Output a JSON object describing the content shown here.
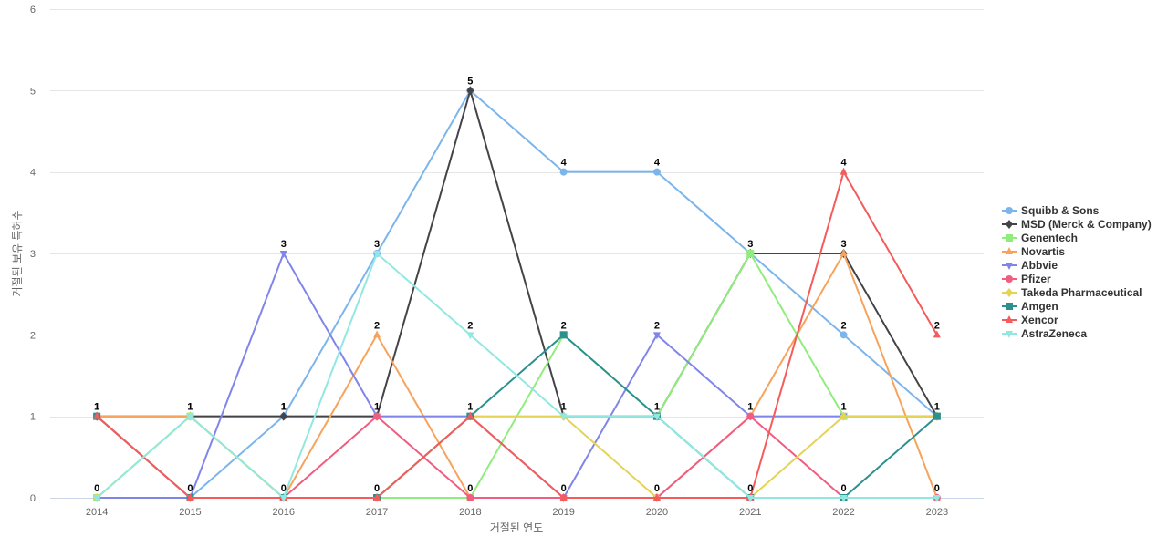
{
  "chart_data": {
    "type": "line",
    "title": "",
    "xlabel": "거절된 연도",
    "ylabel": "거절된 보유 특허수",
    "categories": [
      "2014",
      "2015",
      "2016",
      "2017",
      "2018",
      "2019",
      "2020",
      "2021",
      "2022",
      "2023"
    ],
    "ylim": [
      0,
      6
    ],
    "yticks": [
      "0",
      "1",
      "2",
      "3",
      "4",
      "5",
      "6"
    ],
    "grid": true,
    "legend_position": "right",
    "series": [
      {
        "name": "Squibb & Sons",
        "color": "#7cb5ec",
        "marker": "circle",
        "values": [
          0,
          0,
          1,
          3,
          5,
          4,
          4,
          3,
          2,
          1
        ]
      },
      {
        "name": "MSD (Merck & Company)",
        "color": "#434348",
        "marker": "diamond",
        "values": [
          1,
          1,
          1,
          1,
          5,
          1,
          1,
          3,
          3,
          1
        ]
      },
      {
        "name": "Genentech",
        "color": "#90ed7d",
        "marker": "square",
        "values": [
          0,
          1,
          0,
          0,
          0,
          2,
          1,
          3,
          1,
          1
        ]
      },
      {
        "name": "Novartis",
        "color": "#f7a35c",
        "marker": "triangle",
        "values": [
          1,
          1,
          0,
          2,
          0,
          0,
          0,
          1,
          3,
          0
        ]
      },
      {
        "name": "Abbvie",
        "color": "#8085e9",
        "marker": "triangle-down",
        "values": [
          0,
          0,
          3,
          1,
          1,
          0,
          2,
          1,
          1,
          1
        ]
      },
      {
        "name": "Pfizer",
        "color": "#f15c80",
        "marker": "circle",
        "values": [
          1,
          0,
          0,
          1,
          0,
          0,
          0,
          1,
          0,
          0
        ]
      },
      {
        "name": "Takeda Pharmaceutical",
        "color": "#e4d354",
        "marker": "diamond",
        "values": [
          0,
          1,
          0,
          0,
          1,
          1,
          0,
          0,
          1,
          1
        ]
      },
      {
        "name": "Amgen",
        "color": "#2b908f",
        "marker": "square",
        "values": [
          1,
          0,
          0,
          0,
          1,
          2,
          1,
          0,
          0,
          1
        ]
      },
      {
        "name": "Xencor",
        "color": "#f45b5b",
        "marker": "triangle",
        "values": [
          1,
          0,
          0,
          0,
          1,
          0,
          0,
          0,
          4,
          2
        ]
      },
      {
        "name": "AstraZeneca",
        "color": "#91e8e1",
        "marker": "triangle-down",
        "values": [
          0,
          1,
          0,
          3,
          2,
          1,
          1,
          0,
          0,
          0
        ]
      }
    ],
    "data_labels": {
      "top": [
        "1",
        "1",
        "1",
        "3",
        "5",
        "4",
        "4",
        "3",
        "4",
        "2"
      ],
      "bottom": [
        "0",
        "0",
        "0",
        "0",
        "0",
        "0",
        "0",
        "0",
        "0",
        "0"
      ],
      "middle": [
        "1",
        "1",
        "1",
        "1",
        "1",
        "1",
        "1",
        "1",
        "1",
        "1"
      ],
      "extra_two": [
        "",
        "",
        "",
        "2",
        "2",
        "2",
        "2",
        "",
        "2",
        ""
      ],
      "extra_three": [
        "",
        "",
        "3",
        "",
        "",
        "",
        "",
        "",
        "3",
        ""
      ]
    }
  }
}
